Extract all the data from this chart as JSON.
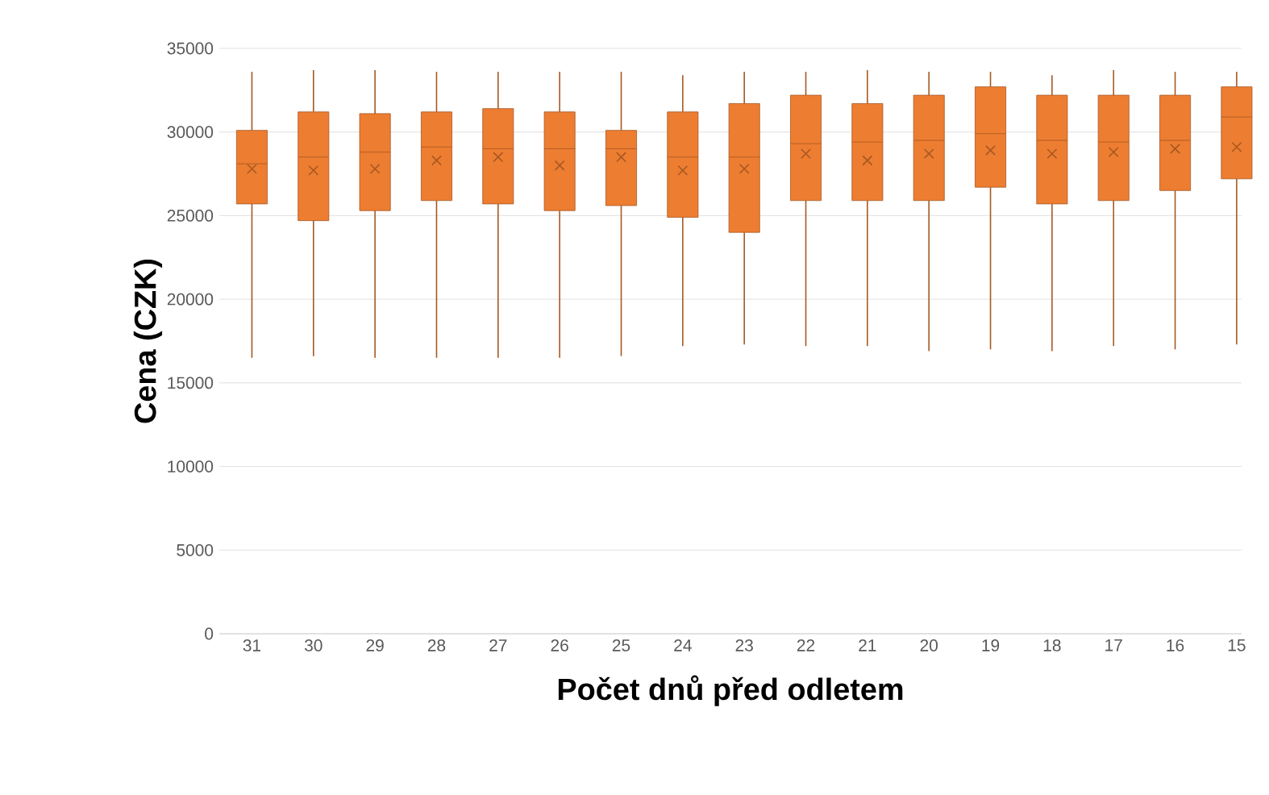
{
  "chart_data": {
    "type": "box",
    "xlabel": "Počet dnů před odletem",
    "ylabel": "Cena (CZK)",
    "categories": [
      "31",
      "30",
      "29",
      "28",
      "27",
      "26",
      "25",
      "24",
      "23",
      "22",
      "21",
      "20",
      "19",
      "18",
      "17",
      "16",
      "15"
    ],
    "color": "#ed7d31",
    "boxes": [
      {
        "low": 16500,
        "q1": 25700,
        "median": 28100,
        "q3": 30100,
        "high": 33600,
        "mean": 27800
      },
      {
        "low": 16600,
        "q1": 24700,
        "median": 28500,
        "q3": 31200,
        "high": 33700,
        "mean": 27700
      },
      {
        "low": 16500,
        "q1": 25300,
        "median": 28800,
        "q3": 31100,
        "high": 33700,
        "mean": 27800
      },
      {
        "low": 16500,
        "q1": 25900,
        "median": 29100,
        "q3": 31200,
        "high": 33600,
        "mean": 28300
      },
      {
        "low": 16500,
        "q1": 25700,
        "median": 29000,
        "q3": 31400,
        "high": 33600,
        "mean": 28500
      },
      {
        "low": 16500,
        "q1": 25300,
        "median": 29000,
        "q3": 31200,
        "high": 33600,
        "mean": 28000
      },
      {
        "low": 16600,
        "q1": 25600,
        "median": 29000,
        "q3": 30100,
        "high": 33600,
        "mean": 28500
      },
      {
        "low": 17200,
        "q1": 24900,
        "median": 28500,
        "q3": 31200,
        "high": 33400,
        "mean": 27700
      },
      {
        "low": 17300,
        "q1": 24000,
        "median": 28500,
        "q3": 31700,
        "high": 33600,
        "mean": 27800
      },
      {
        "low": 17200,
        "q1": 25900,
        "median": 29300,
        "q3": 32200,
        "high": 33600,
        "mean": 28700
      },
      {
        "low": 17200,
        "q1": 25900,
        "median": 29400,
        "q3": 31700,
        "high": 33700,
        "mean": 28300
      },
      {
        "low": 16900,
        "q1": 25900,
        "median": 29500,
        "q3": 32200,
        "high": 33600,
        "mean": 28700
      },
      {
        "low": 17000,
        "q1": 26700,
        "median": 29900,
        "q3": 32700,
        "high": 33600,
        "mean": 28900
      },
      {
        "low": 16900,
        "q1": 25700,
        "median": 29500,
        "q3": 32200,
        "high": 33400,
        "mean": 28700
      },
      {
        "low": 17200,
        "q1": 25900,
        "median": 29400,
        "q3": 32200,
        "high": 33700,
        "mean": 28800
      },
      {
        "low": 17000,
        "q1": 26500,
        "median": 29500,
        "q3": 32200,
        "high": 33600,
        "mean": 29000
      },
      {
        "low": 17300,
        "q1": 27200,
        "median": 30900,
        "q3": 32700,
        "high": 33600,
        "mean": 29100
      }
    ],
    "ylim": [
      0,
      35000
    ],
    "yticks": [
      0,
      5000,
      10000,
      15000,
      20000,
      25000,
      30000,
      35000
    ],
    "grid": "y"
  }
}
